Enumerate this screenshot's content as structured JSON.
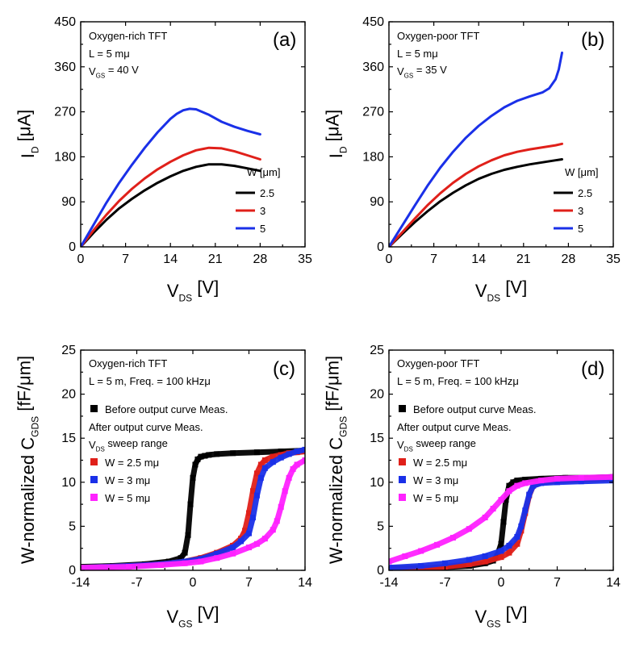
{
  "chart_data": [
    {
      "panel": "(a)",
      "type": "line",
      "notes": [
        {
          "main": "Oxygen-rich TFT"
        },
        {
          "main": "L = 5 ",
          "greek": "μ",
          "tail": "m"
        },
        {
          "main": "V",
          "sub": "GS",
          "tail": " = 40 V"
        }
      ],
      "xlabel": {
        "main": "V",
        "sub": "DS",
        "tail": " [V]"
      },
      "ylabel": {
        "main": "I",
        "sub": "D",
        "tail": " [",
        "greek": "μ",
        "tail2": "A]"
      },
      "xlim": [
        0,
        35
      ],
      "ylim": [
        0,
        450
      ],
      "xticks": [
        0,
        7,
        14,
        21,
        28,
        35
      ],
      "yticks": [
        0,
        90,
        180,
        270,
        360,
        450
      ],
      "legend": {
        "title": "W [μm]",
        "position": "right",
        "entries": [
          "2.5",
          "3",
          "5"
        ]
      },
      "series": [
        {
          "name": "2.5",
          "color": "#000000",
          "x": [
            0,
            2,
            4,
            6,
            8,
            10,
            12,
            14,
            16,
            18,
            20,
            22,
            24,
            26,
            28
          ],
          "y": [
            0,
            28,
            54,
            77,
            96,
            113,
            128,
            141,
            152,
            160,
            165,
            165,
            162,
            157,
            152
          ]
        },
        {
          "name": "3",
          "color": "#e0201a",
          "x": [
            0,
            2,
            4,
            6,
            8,
            10,
            12,
            14,
            16,
            18,
            20,
            22,
            24,
            26,
            28
          ],
          "y": [
            0,
            33,
            64,
            92,
            116,
            137,
            155,
            170,
            183,
            193,
            198,
            197,
            191,
            183,
            175
          ]
        },
        {
          "name": "5",
          "color": "#1a30e8",
          "x": [
            0,
            2,
            4,
            6,
            8,
            10,
            12,
            14,
            15,
            16,
            17,
            18,
            20,
            22,
            24,
            26,
            28
          ],
          "y": [
            0,
            44,
            88,
            128,
            164,
            198,
            229,
            256,
            266,
            273,
            276,
            275,
            264,
            250,
            240,
            232,
            225
          ]
        }
      ]
    },
    {
      "panel": "(b)",
      "type": "line",
      "notes": [
        {
          "main": "Oxygen-poor TFT"
        },
        {
          "main": "L = 5 ",
          "greek": "μ",
          "tail": "m"
        },
        {
          "main": "V",
          "sub": "GS",
          "tail": " = 35 V"
        }
      ],
      "xlabel": {
        "main": "V",
        "sub": "DS",
        "tail": " [V]"
      },
      "ylabel": {
        "main": "I",
        "sub": "D",
        "tail": " [",
        "greek": "μ",
        "tail2": "A]"
      },
      "xlim": [
        0,
        35
      ],
      "ylim": [
        0,
        450
      ],
      "xticks": [
        0,
        7,
        14,
        21,
        28,
        35
      ],
      "yticks": [
        0,
        90,
        180,
        270,
        360,
        450
      ],
      "legend": {
        "title": "W [μm]",
        "position": "right",
        "entries": [
          "2.5",
          "3",
          "5"
        ]
      },
      "series": [
        {
          "name": "2.5",
          "color": "#000000",
          "x": [
            0,
            2,
            4,
            6,
            8,
            10,
            12,
            14,
            16,
            18,
            20,
            22,
            24,
            26,
            27
          ],
          "y": [
            0,
            25,
            49,
            71,
            91,
            108,
            123,
            136,
            146,
            154,
            160,
            165,
            169,
            173,
            175
          ]
        },
        {
          "name": "3",
          "color": "#e0201a",
          "x": [
            0,
            2,
            4,
            6,
            8,
            10,
            12,
            14,
            16,
            18,
            20,
            22,
            24,
            26,
            27
          ],
          "y": [
            0,
            28,
            56,
            83,
            107,
            128,
            146,
            161,
            173,
            183,
            190,
            195,
            199,
            203,
            206
          ]
        },
        {
          "name": "5",
          "color": "#1a30e8",
          "x": [
            0,
            2,
            4,
            6,
            8,
            10,
            12,
            14,
            16,
            18,
            20,
            22,
            24,
            25,
            26,
            26.5,
            27
          ],
          "y": [
            0,
            41,
            82,
            122,
            158,
            190,
            218,
            242,
            262,
            279,
            292,
            301,
            309,
            317,
            335,
            355,
            388
          ]
        }
      ]
    },
    {
      "panel": "(c)",
      "type": "scatter",
      "notes": [
        {
          "main": "Oxygen-rich TFT"
        },
        {
          "main": "L = 5 ",
          "greek": "μ",
          "tail": "m, Freq. = 100 kHz"
        }
      ],
      "xlabel": {
        "main": "V",
        "sub": "GS",
        "tail": " [V]"
      },
      "ylabel": {
        "main": "W-normalized C",
        "sub": "GDS",
        "tail": " [fF/",
        "greek": "μ",
        "tail2": "m]"
      },
      "xlim": [
        -14,
        14
      ],
      "ylim": [
        0,
        25
      ],
      "xticks": [
        -14,
        -7,
        0,
        7,
        14
      ],
      "yticks": [
        0,
        5,
        10,
        15,
        20,
        25
      ],
      "legend": {
        "position": "left",
        "entries": [
          {
            "label": "Before output curve Meas.",
            "color": "#000000"
          },
          {
            "label": "After output curve Meas.",
            "header": true
          },
          {
            "label": "V",
            "sub": "DS",
            "tail": " sweep range",
            "header": true
          },
          {
            "label": "W = 2.5 ",
            "greek": "μ",
            "tail": "m",
            "color": "#e0201a"
          },
          {
            "label": "W = 3 ",
            "greek": "μ",
            "tail": "m",
            "color": "#1a30e8"
          },
          {
            "label": "W = 5 ",
            "greek": "μ",
            "tail": "m",
            "color": "#ff22ff"
          }
        ]
      },
      "series": [
        {
          "name": "Before output curve Meas.",
          "color": "#000000",
          "x": [
            -14,
            -10,
            -6,
            -3,
            -1.5,
            -1,
            -0.6,
            -0.3,
            0,
            0.3,
            0.6,
            1,
            1.5,
            2,
            3,
            5,
            8,
            11,
            14
          ],
          "y": [
            0.4,
            0.5,
            0.7,
            1.0,
            1.4,
            2.0,
            4.0,
            7.5,
            10.5,
            12.0,
            12.6,
            12.9,
            13.0,
            13.1,
            13.2,
            13.3,
            13.4,
            13.5,
            13.6
          ]
        },
        {
          "name": "W = 2.5 μm",
          "color": "#e0201a",
          "x": [
            -14,
            -8,
            -4,
            -1,
            1,
            3,
            5,
            6,
            6.5,
            7,
            7.5,
            8,
            8.5,
            9,
            10,
            11,
            12,
            13,
            14
          ],
          "y": [
            0.3,
            0.5,
            0.7,
            1.0,
            1.4,
            2.0,
            2.8,
            3.6,
            4.5,
            6.5,
            9.0,
            11.0,
            12.0,
            12.5,
            12.9,
            13.1,
            13.3,
            13.4,
            13.5
          ]
        },
        {
          "name": "W = 3 μm",
          "color": "#1a30e8",
          "x": [
            -14,
            -8,
            -4,
            -1,
            1,
            3,
            5,
            6,
            7,
            7.5,
            8,
            8.5,
            9,
            10,
            11,
            12,
            13,
            14
          ],
          "y": [
            0.3,
            0.5,
            0.7,
            1.0,
            1.3,
            1.9,
            2.6,
            3.3,
            4.2,
            6.0,
            8.5,
            10.5,
            11.6,
            12.3,
            12.8,
            13.2,
            13.5,
            13.7
          ]
        },
        {
          "name": "W = 5 μm",
          "color": "#ff22ff",
          "x": [
            -14,
            -8,
            -4,
            -1,
            1,
            3,
            5,
            7,
            8,
            9,
            10,
            10.5,
            11,
            11.5,
            12,
            12.5,
            13,
            14
          ],
          "y": [
            0.3,
            0.4,
            0.6,
            0.8,
            1.0,
            1.4,
            1.9,
            2.6,
            3.0,
            3.6,
            4.6,
            5.6,
            7.2,
            9.0,
            10.5,
            11.5,
            12.0,
            12.5
          ]
        }
      ]
    },
    {
      "panel": "(d)",
      "type": "scatter",
      "notes": [
        {
          "main": "Oxygen-poor TFT"
        },
        {
          "main": "L = 5 ",
          "greek": "μ",
          "tail": "m, Freq. = 100 kHz"
        }
      ],
      "xlabel": {
        "main": "V",
        "sub": "GS",
        "tail": " [V]"
      },
      "ylabel": {
        "main": "W-normalized C",
        "sub": "GDS",
        "tail": " [fF/",
        "greek": "μ",
        "tail2": "m]"
      },
      "xlim": [
        -14,
        14
      ],
      "ylim": [
        0,
        25
      ],
      "xticks": [
        -14,
        -7,
        0,
        7,
        14
      ],
      "yticks": [
        0,
        5,
        10,
        15,
        20,
        25
      ],
      "legend": {
        "position": "left",
        "entries": [
          {
            "label": "Before output curve Meas.",
            "color": "#000000"
          },
          {
            "label": "After output curve Meas.",
            "header": true
          },
          {
            "label": "V",
            "sub": "DS",
            "tail": " sweep range",
            "header": true
          },
          {
            "label": "W = 2.5 ",
            "greek": "μ",
            "tail": "m",
            "color": "#e0201a"
          },
          {
            "label": "W = 3 ",
            "greek": "μ",
            "tail": "m",
            "color": "#1a30e8"
          },
          {
            "label": "W = 5 ",
            "greek": "μ",
            "tail": "m",
            "color": "#ff22ff"
          }
        ]
      },
      "series": [
        {
          "name": "Before output curve Meas.",
          "color": "#000000",
          "x": [
            -14,
            -8,
            -4,
            -2,
            -1,
            -0.5,
            0,
            0.3,
            0.6,
            1,
            1.5,
            2,
            3,
            5,
            8,
            11,
            14
          ],
          "y": [
            0.2,
            0.3,
            0.5,
            0.8,
            1.1,
            1.6,
            3.0,
            5.5,
            8.0,
            9.6,
            10.0,
            10.2,
            10.3,
            10.4,
            10.5,
            10.5,
            10.6
          ]
        },
        {
          "name": "W = 2.5 μm",
          "color": "#e0201a",
          "x": [
            -14,
            -10,
            -7,
            -4,
            -2,
            0,
            1,
            2,
            2.5,
            3,
            3.5,
            4,
            5,
            7,
            10,
            14
          ],
          "y": [
            0.1,
            0.2,
            0.4,
            0.7,
            1.0,
            1.5,
            2.0,
            3.0,
            4.5,
            6.5,
            8.5,
            9.6,
            10.0,
            10.2,
            10.3,
            10.4
          ]
        },
        {
          "name": "W = 3 μm",
          "color": "#1a30e8",
          "x": [
            -14,
            -10,
            -7,
            -4,
            -2,
            0,
            1,
            2,
            2.5,
            3,
            3.5,
            4,
            5,
            7,
            10,
            14
          ],
          "y": [
            0.3,
            0.5,
            0.8,
            1.2,
            1.6,
            2.2,
            2.8,
            3.8,
            5.0,
            6.8,
            8.6,
            9.6,
            9.9,
            10.0,
            10.1,
            10.2
          ]
        },
        {
          "name": "W = 5 μm",
          "color": "#ff22ff",
          "x": [
            -14,
            -12,
            -10,
            -8,
            -6,
            -4,
            -2,
            -1,
            0,
            1,
            2,
            3,
            5,
            7,
            10,
            14
          ],
          "y": [
            1.0,
            1.6,
            2.2,
            2.9,
            3.7,
            4.7,
            6.0,
            7.0,
            8.0,
            9.0,
            9.6,
            9.9,
            10.2,
            10.4,
            10.5,
            10.6
          ]
        }
      ]
    }
  ]
}
